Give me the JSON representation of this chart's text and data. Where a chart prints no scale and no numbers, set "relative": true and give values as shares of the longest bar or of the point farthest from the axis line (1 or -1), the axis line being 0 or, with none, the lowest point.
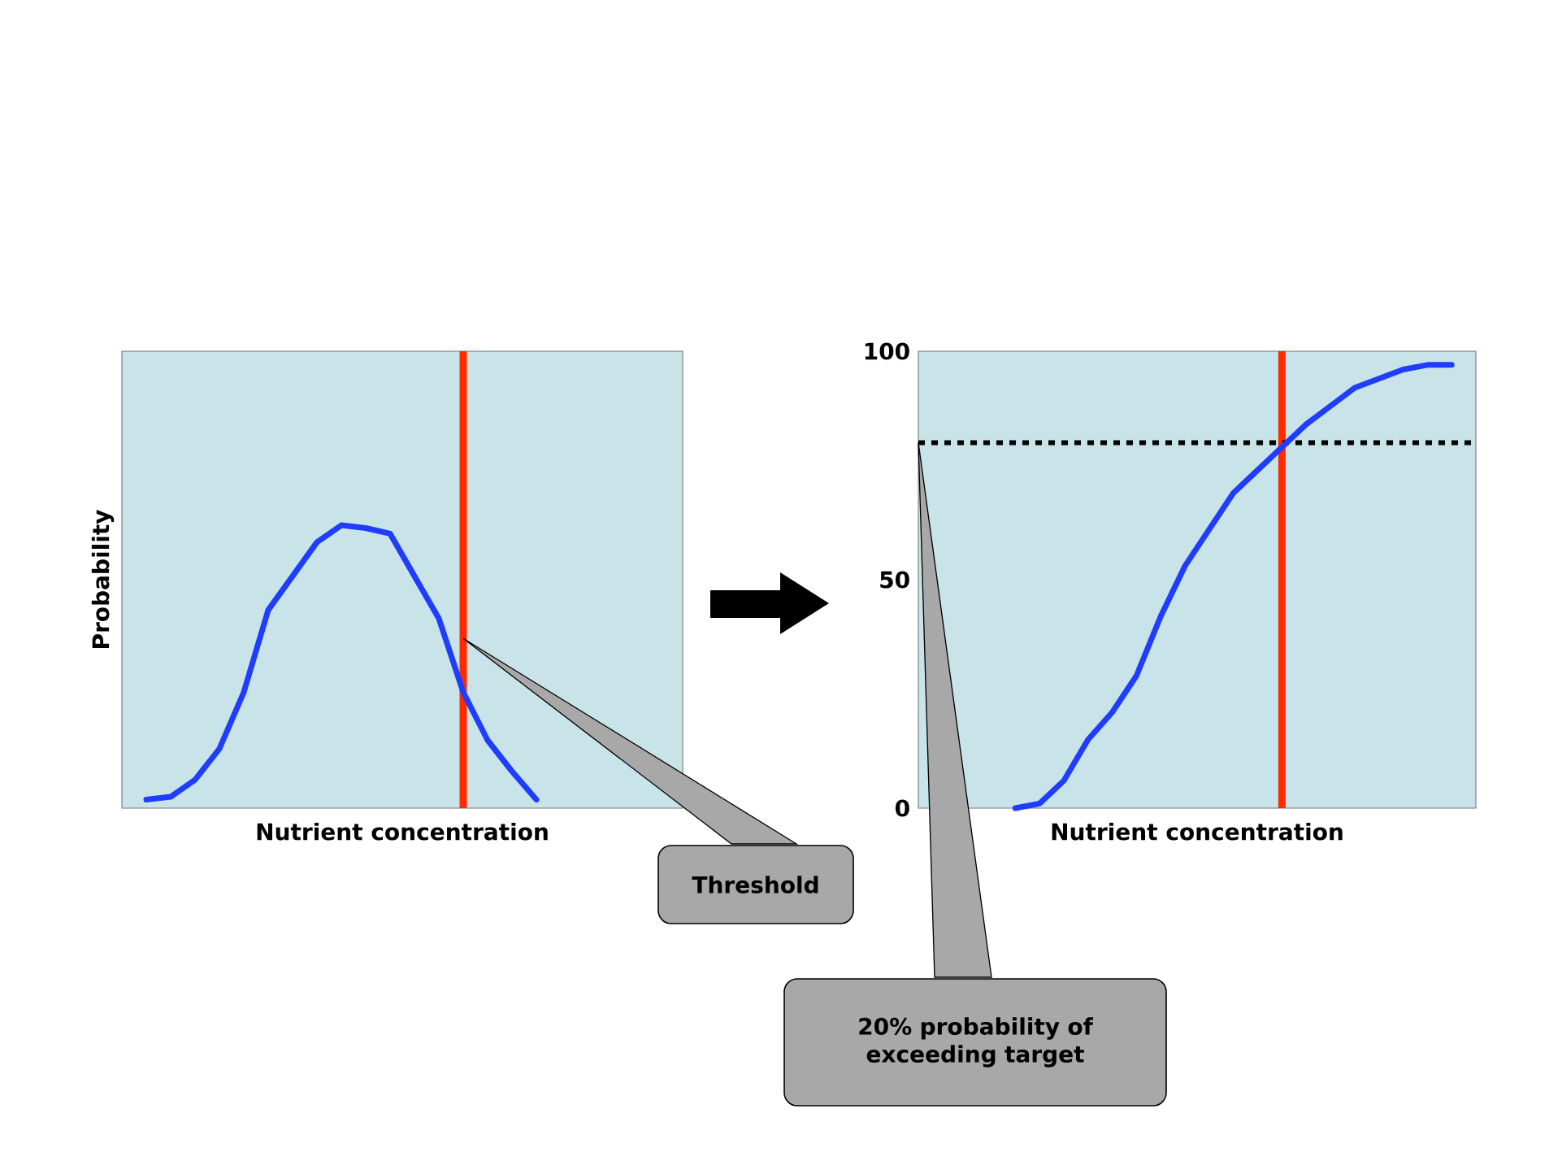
{
  "chart_data": [
    {
      "type": "line",
      "relative": true,
      "ylabel": "Probability",
      "xlabel": "Nutrient concentration",
      "categories": [
        null,
        null,
        null,
        null,
        null,
        null,
        null,
        null,
        null,
        null,
        null,
        null,
        null,
        null,
        null,
        null,
        null,
        null,
        null,
        null,
        null,
        null,
        null,
        null
      ],
      "series": [
        {
          "color": "#1f3dff",
          "values": [
            null,
            0.03,
            0.04,
            0.1,
            0.21,
            0.41,
            0.7,
            0.82,
            0.94,
            1,
            0.99,
            0.97,
            0.82,
            0.67,
            0.41,
            0.24,
            0.13,
            0.03,
            null,
            null,
            null,
            null,
            null,
            null
          ]
        }
      ],
      "annotations": [
        "Threshold"
      ]
    },
    {
      "type": "line",
      "xlabel": "Nutrient concentration",
      "ylim": [
        0,
        100
      ],
      "yticks": [
        0,
        50,
        100
      ],
      "tick_labels": "y",
      "categories": [
        null,
        null,
        null,
        null,
        null,
        null,
        null,
        null,
        null,
        null,
        null,
        null,
        null,
        null,
        null,
        null,
        null,
        null,
        null,
        null,
        null,
        null,
        null,
        null
      ],
      "series": [
        {
          "color": "#1f3dff",
          "values": [
            null,
            null,
            null,
            null,
            0,
            1,
            6,
            15,
            21,
            29,
            42,
            53,
            61,
            69,
            74,
            79,
            84,
            88,
            92,
            94,
            96,
            97,
            97,
            null
          ]
        }
      ],
      "ref_lines": [
        {
          "axis": "y",
          "value": 80,
          "color": "#000000",
          "line_style": "dotted"
        }
      ],
      "annotations": [
        "20% probability of exceeding target"
      ]
    }
  ]
}
